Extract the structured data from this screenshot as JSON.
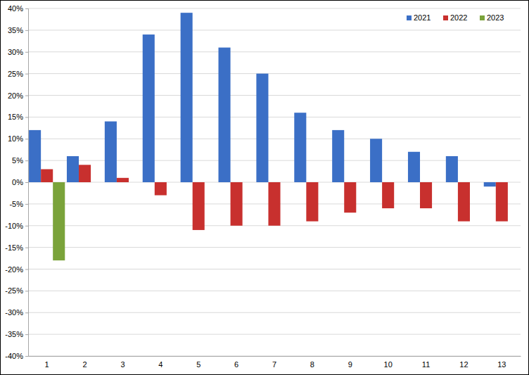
{
  "chart_data": {
    "type": "bar",
    "categories": [
      "1",
      "2",
      "3",
      "4",
      "5",
      "6",
      "7",
      "8",
      "9",
      "10",
      "11",
      "12",
      "13"
    ],
    "series": [
      {
        "name": "2021",
        "color": "#3b6fc6",
        "values": [
          12,
          6,
          14,
          34,
          39,
          31,
          25,
          16,
          12,
          10,
          7,
          6,
          -1
        ]
      },
      {
        "name": "2022",
        "color": "#c8302e",
        "values": [
          3,
          4,
          1,
          -3,
          -11,
          -10,
          -10,
          -9,
          -7,
          -6,
          -6,
          -9,
          -9
        ]
      },
      {
        "name": "2023",
        "color": "#7aa33a",
        "values": [
          -18,
          null,
          null,
          null,
          null,
          null,
          null,
          null,
          null,
          null,
          null,
          null,
          null
        ]
      }
    ],
    "ylim": [
      -40,
      40
    ],
    "yticks": [
      {
        "value": -40,
        "label": "-40%"
      },
      {
        "value": -35,
        "label": "-35%"
      },
      {
        "value": -30,
        "label": "-30%"
      },
      {
        "value": -25,
        "label": "-25%"
      },
      {
        "value": -20,
        "label": "-20%"
      },
      {
        "value": -15,
        "label": "-15%"
      },
      {
        "value": -10,
        "label": "-10%"
      },
      {
        "value": -5,
        "label": "-5%"
      },
      {
        "value": 0,
        "label": "0%"
      },
      {
        "value": 5,
        "label": "5%"
      },
      {
        "value": 10,
        "label": "10%"
      },
      {
        "value": 15,
        "label": "15%"
      },
      {
        "value": 20,
        "label": "20%"
      },
      {
        "value": 25,
        "label": "25%"
      },
      {
        "value": 30,
        "label": "30%"
      },
      {
        "value": 35,
        "label": "35%"
      },
      {
        "value": 40,
        "label": "40%"
      }
    ],
    "grid": true,
    "legend": "top-right"
  }
}
